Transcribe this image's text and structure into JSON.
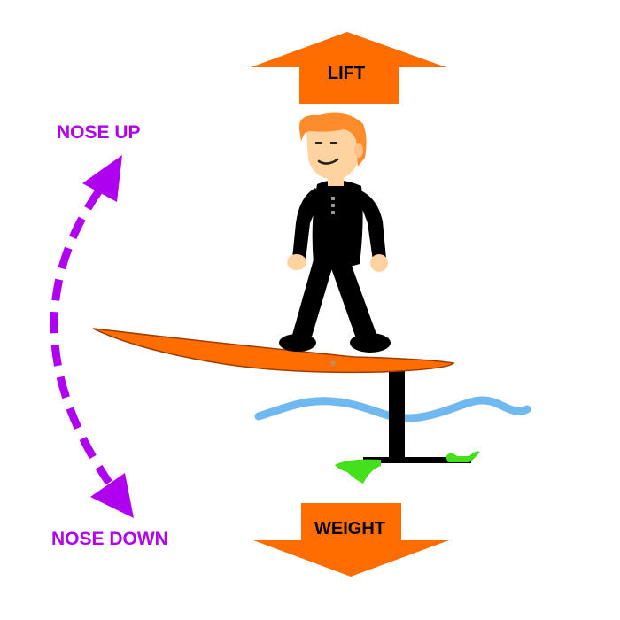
{
  "labels": {
    "lift": "LIFT",
    "weight": "WEIGHT",
    "nose_up": "NOSE UP",
    "nose_down": "NOSE DOWN"
  },
  "colors": {
    "force_arrow": "#ff6d00",
    "pitch_arrow": "#b000f0",
    "board": "#ff6d00",
    "water": "#6fb8f0",
    "foil_wing": "#44e01c",
    "mast": "#000000",
    "suit": "#000000",
    "skin": "#ffd3a0",
    "hair": "#ff8c2a",
    "label_text": "#000000"
  }
}
